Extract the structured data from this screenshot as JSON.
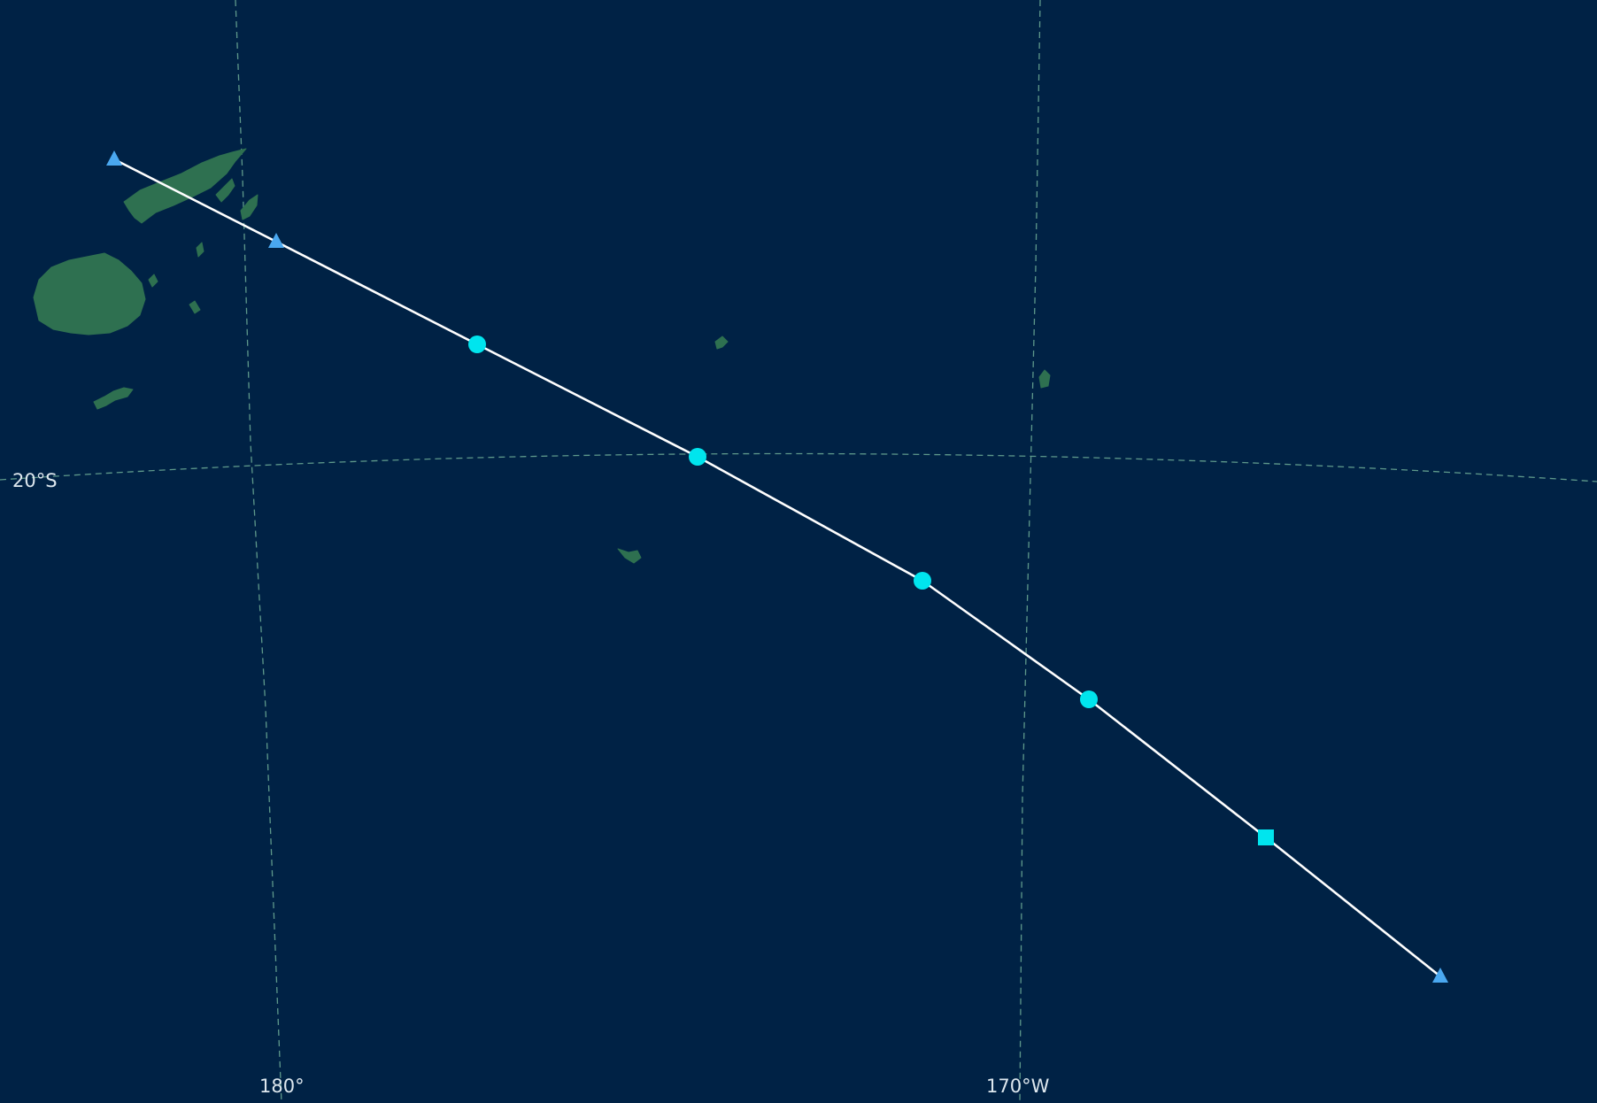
{
  "map": {
    "graticule_color": "#6fae98",
    "ocean_color": "#002245",
    "land_color": "#2e7050",
    "track_color": "#ffffff",
    "labels": {
      "lat_20s": "20°S",
      "lon_180": "180°",
      "lon_170w": "170°W"
    },
    "track_points": [
      {
        "marker": "triangle",
        "color": "#4aa8f0"
      },
      {
        "marker": "triangle",
        "color": "#4aa8f0"
      },
      {
        "marker": "circle",
        "color": "#00e5ee"
      },
      {
        "marker": "circle",
        "color": "#00e5ee"
      },
      {
        "marker": "circle",
        "color": "#00e5ee"
      },
      {
        "marker": "circle",
        "color": "#00e5ee"
      },
      {
        "marker": "square",
        "color": "#00e5ee"
      },
      {
        "marker": "triangle",
        "color": "#4aa8f0"
      }
    ]
  }
}
